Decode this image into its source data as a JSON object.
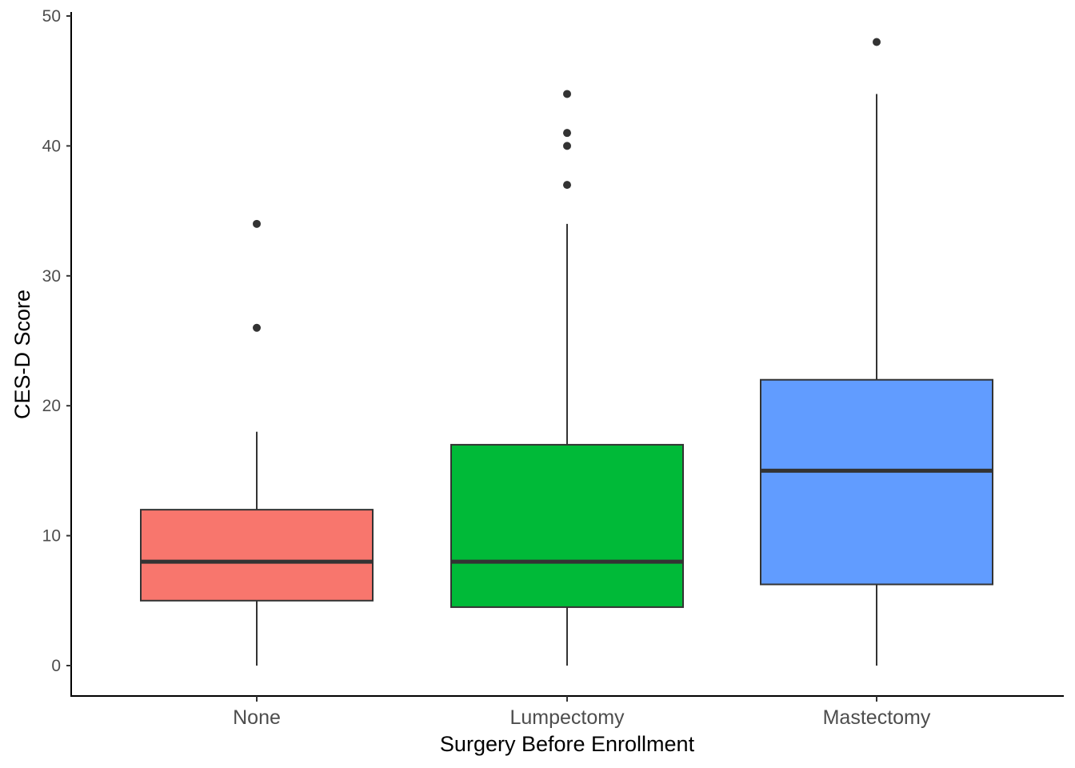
{
  "chart_data": {
    "type": "boxplot",
    "xlabel": "Surgery Before Enrollment",
    "ylabel": "CES-D Score",
    "ylim": [
      0,
      50
    ],
    "yticks": [
      0,
      10,
      20,
      30,
      40,
      50
    ],
    "grid": false,
    "legend": "none",
    "categories": [
      "None",
      "Lumpectomy",
      "Mastectomy"
    ],
    "boxes": [
      {
        "category": "None",
        "color": "#F8766D",
        "min": 0,
        "q1": 5,
        "median": 8,
        "q3": 12,
        "max": 18,
        "outliers": [
          26,
          34
        ]
      },
      {
        "category": "Lumpectomy",
        "color": "#00BA38",
        "min": 0,
        "q1": 4.5,
        "median": 8,
        "q3": 17,
        "max": 34,
        "outliers": [
          37,
          40,
          41,
          44
        ]
      },
      {
        "category": "Mastectomy",
        "color": "#619CFF",
        "min": 0,
        "q1": 6.25,
        "median": 15,
        "q3": 22,
        "max": 44,
        "outliers": [
          48
        ]
      }
    ]
  }
}
